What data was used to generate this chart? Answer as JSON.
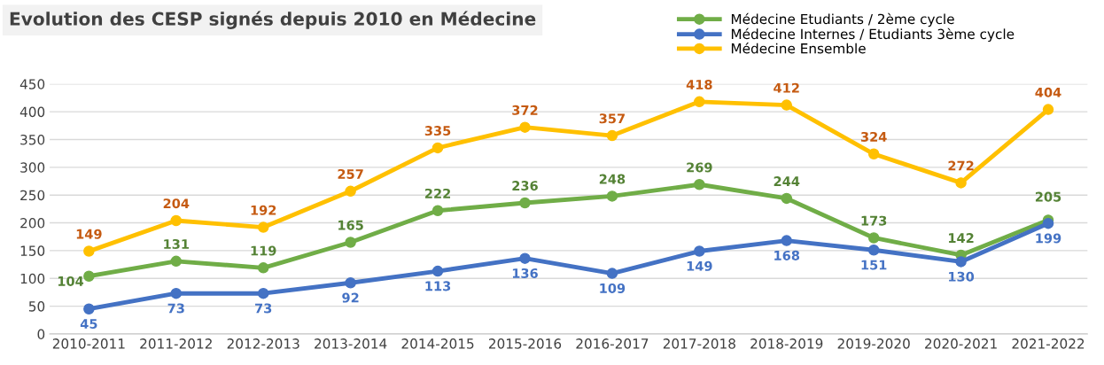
{
  "chart_data": {
    "type": "line",
    "title": "Evolution des CESP signés depuis 2010 en Médecine",
    "categories": [
      "2010-2011",
      "2011-2012",
      "2012-2013",
      "2013-2014",
      "2014-2015",
      "2015-2016",
      "2016-2017",
      "2017-2018",
      "2018-2019",
      "2019-2020",
      "2020-2021",
      "2021-2022"
    ],
    "series": [
      {
        "name": "Médecine Etudiants / 2ème cycle",
        "color": "#70ad47",
        "values": [
          104,
          131,
          119,
          165,
          222,
          236,
          248,
          269,
          244,
          173,
          142,
          205
        ]
      },
      {
        "name": "Médecine Internes / Etudiants 3ème cycle",
        "color": "#4472c4",
        "values": [
          45,
          73,
          73,
          92,
          113,
          136,
          109,
          149,
          168,
          151,
          130,
          199
        ]
      },
      {
        "name": "Médecine Ensemble",
        "color": "#ffc000",
        "values": [
          149,
          204,
          192,
          257,
          335,
          372,
          357,
          418,
          412,
          324,
          272,
          404
        ]
      }
    ],
    "ylim": [
      0,
      450
    ],
    "yticks": [
      0,
      50,
      100,
      150,
      200,
      250,
      300,
      350,
      400,
      450
    ],
    "grid": "y",
    "legend": "top right",
    "marker": "circle",
    "line_style": "solid",
    "data_labels": true
  }
}
